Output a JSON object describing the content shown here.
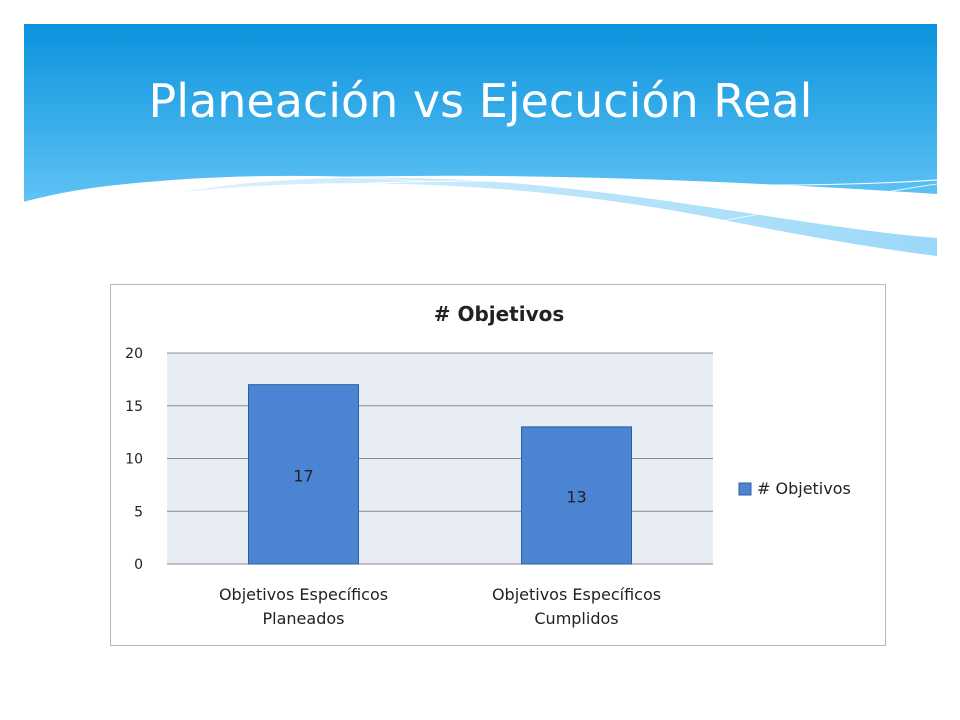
{
  "slide": {
    "title": "Planeación vs Ejecución Real"
  },
  "colors": {
    "header_top": "#0a93dd",
    "header_bottom": "#5ec0f4",
    "plot_background": "#e7ecf5",
    "bar": "#4a84d2",
    "bar_border": "#2f5f9c"
  },
  "chart_data": {
    "type": "bar",
    "title": "# Objetivos",
    "categories": [
      "Objetivos Específicos Planeados",
      "Objetivos Específicos Cumplidos"
    ],
    "category_lines": [
      [
        "Objetivos Específicos",
        "Planeados"
      ],
      [
        "Objetivos Específicos",
        "Cumplidos"
      ]
    ],
    "series": [
      {
        "name": "# Objetivos",
        "values": [
          17,
          13
        ]
      }
    ],
    "ylim": [
      0,
      20
    ],
    "yticks": [
      0,
      5,
      10,
      15,
      20
    ],
    "grid": true,
    "legend": "right",
    "data_labels": true
  }
}
